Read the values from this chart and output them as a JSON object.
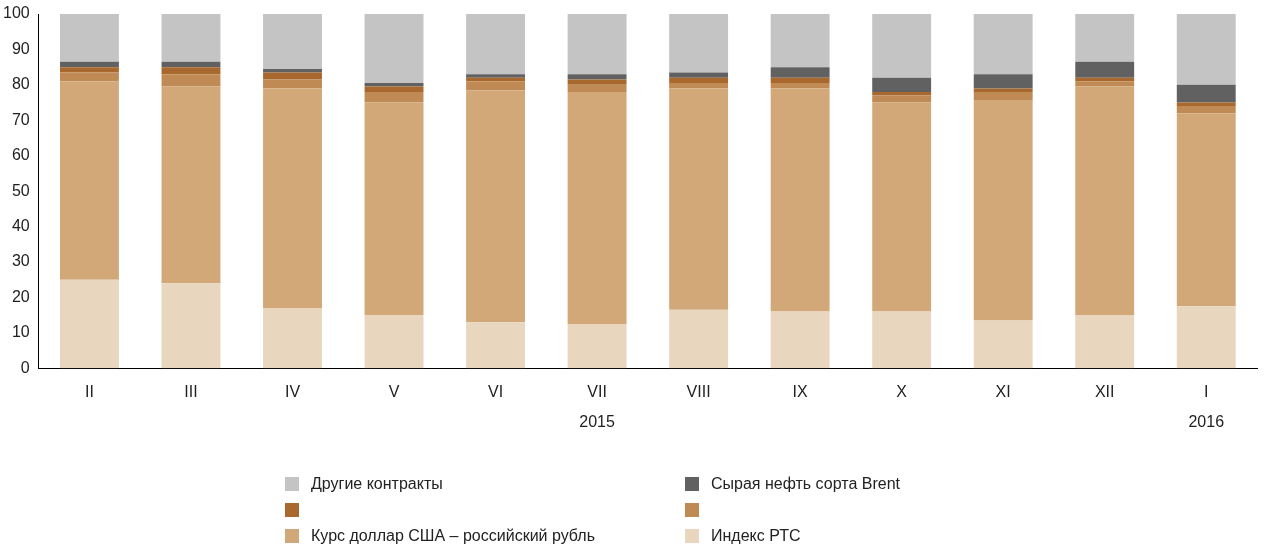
{
  "chart_data": {
    "type": "bar",
    "stacked": true,
    "categories": [
      "II",
      "III",
      "IV",
      "V",
      "VI",
      "VII\n2015",
      "VIII",
      "IX",
      "X",
      "XI",
      "XII",
      "I\n2016"
    ],
    "series": [
      {
        "name": "Индекс РТС",
        "color": "#e8d6bf",
        "values": [
          25,
          24,
          17,
          15,
          13,
          12.5,
          16.5,
          16,
          16,
          13.5,
          15,
          17.5
        ]
      },
      {
        "name": "Курс доллар США – российский рубль",
        "color": "#d2a878",
        "values": [
          56,
          55.5,
          62,
          60,
          65.5,
          65.5,
          62.5,
          63,
          59,
          62,
          64.5,
          54.5
        ]
      },
      {
        "color": "#c08a55",
        "values": [
          2.5,
          3.5,
          2.5,
          3,
          2.5,
          2,
          1.5,
          1.5,
          2,
          2.5,
          1.5,
          2
        ]
      },
      {
        "color": "#a8682e",
        "values": [
          1.5,
          2,
          2,
          1.5,
          1,
          1.5,
          1.5,
          1.5,
          1,
          1,
          1,
          1
        ]
      },
      {
        "name": "Сырая нефть сорта Brent",
        "color": "#616161",
        "values": [
          1.5,
          1.5,
          1,
          1,
          1,
          1.5,
          1.5,
          3,
          4,
          4,
          4.5,
          5
        ]
      },
      {
        "name": "Другие контракты",
        "color": "#c4c4c4",
        "values": [
          13.5,
          13.5,
          15.5,
          19.5,
          17,
          17,
          16.5,
          15,
          18,
          17,
          13.5,
          20
        ]
      }
    ],
    "ylim": [
      0,
      100
    ],
    "yticks": [
      0,
      10,
      20,
      30,
      40,
      50,
      60,
      70,
      80,
      90,
      100
    ],
    "grid": false,
    "legend": "bottom"
  }
}
